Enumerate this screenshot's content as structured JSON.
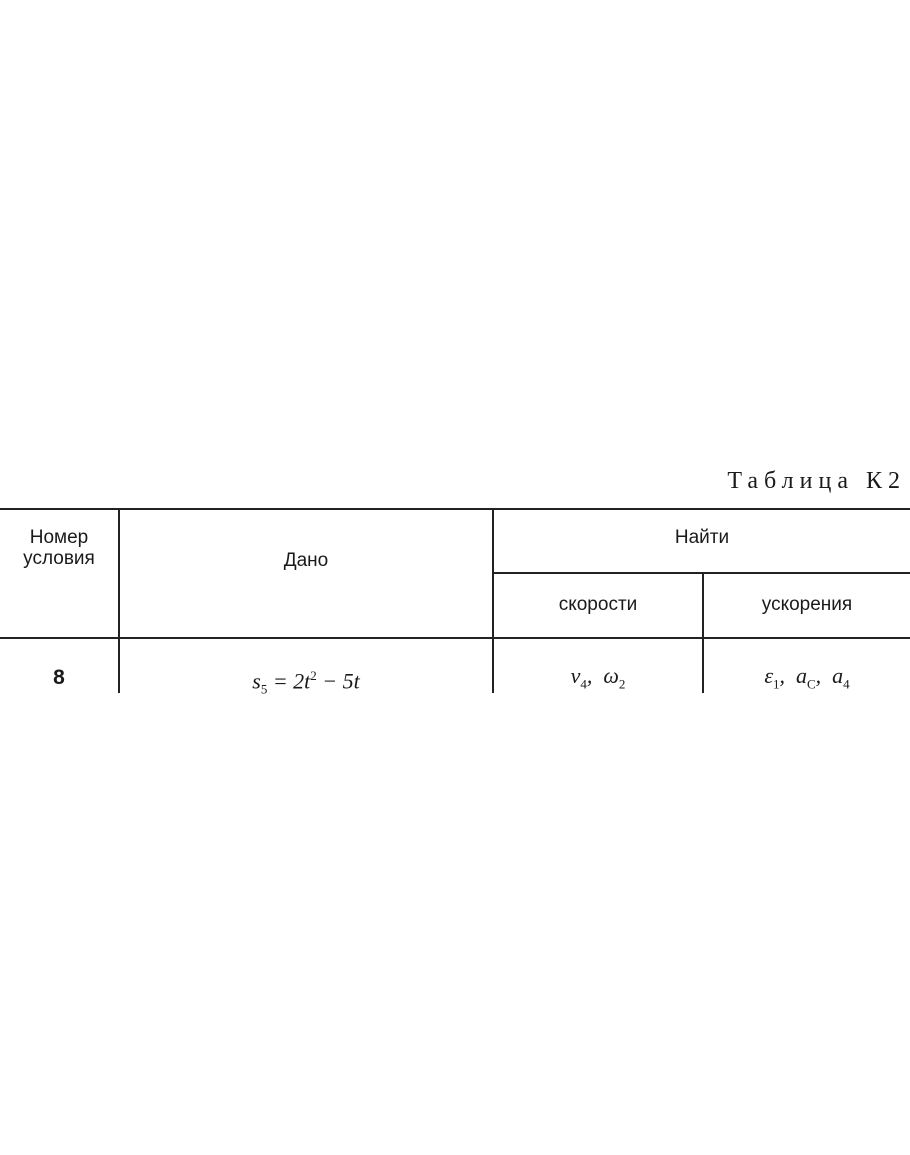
{
  "table_title": "Таблица К2",
  "headers": {
    "number": "Номер условия",
    "given": "Дано",
    "find": "Найти",
    "velocities": "скорости",
    "accelerations": "ускорения"
  },
  "rows": [
    {
      "number": "8",
      "given": {
        "var": "s",
        "sub": "5",
        "eq": " = 2t",
        "sup": "2",
        "rest": " − 5t"
      },
      "velocities": [
        {
          "var": "v",
          "sub": "4"
        },
        {
          "var": "ω",
          "sub": "2"
        }
      ],
      "accelerations": [
        {
          "var": "ε",
          "sub": "1"
        },
        {
          "var": "a",
          "sub": "C"
        },
        {
          "var": "a",
          "sub": "4"
        }
      ]
    }
  ]
}
